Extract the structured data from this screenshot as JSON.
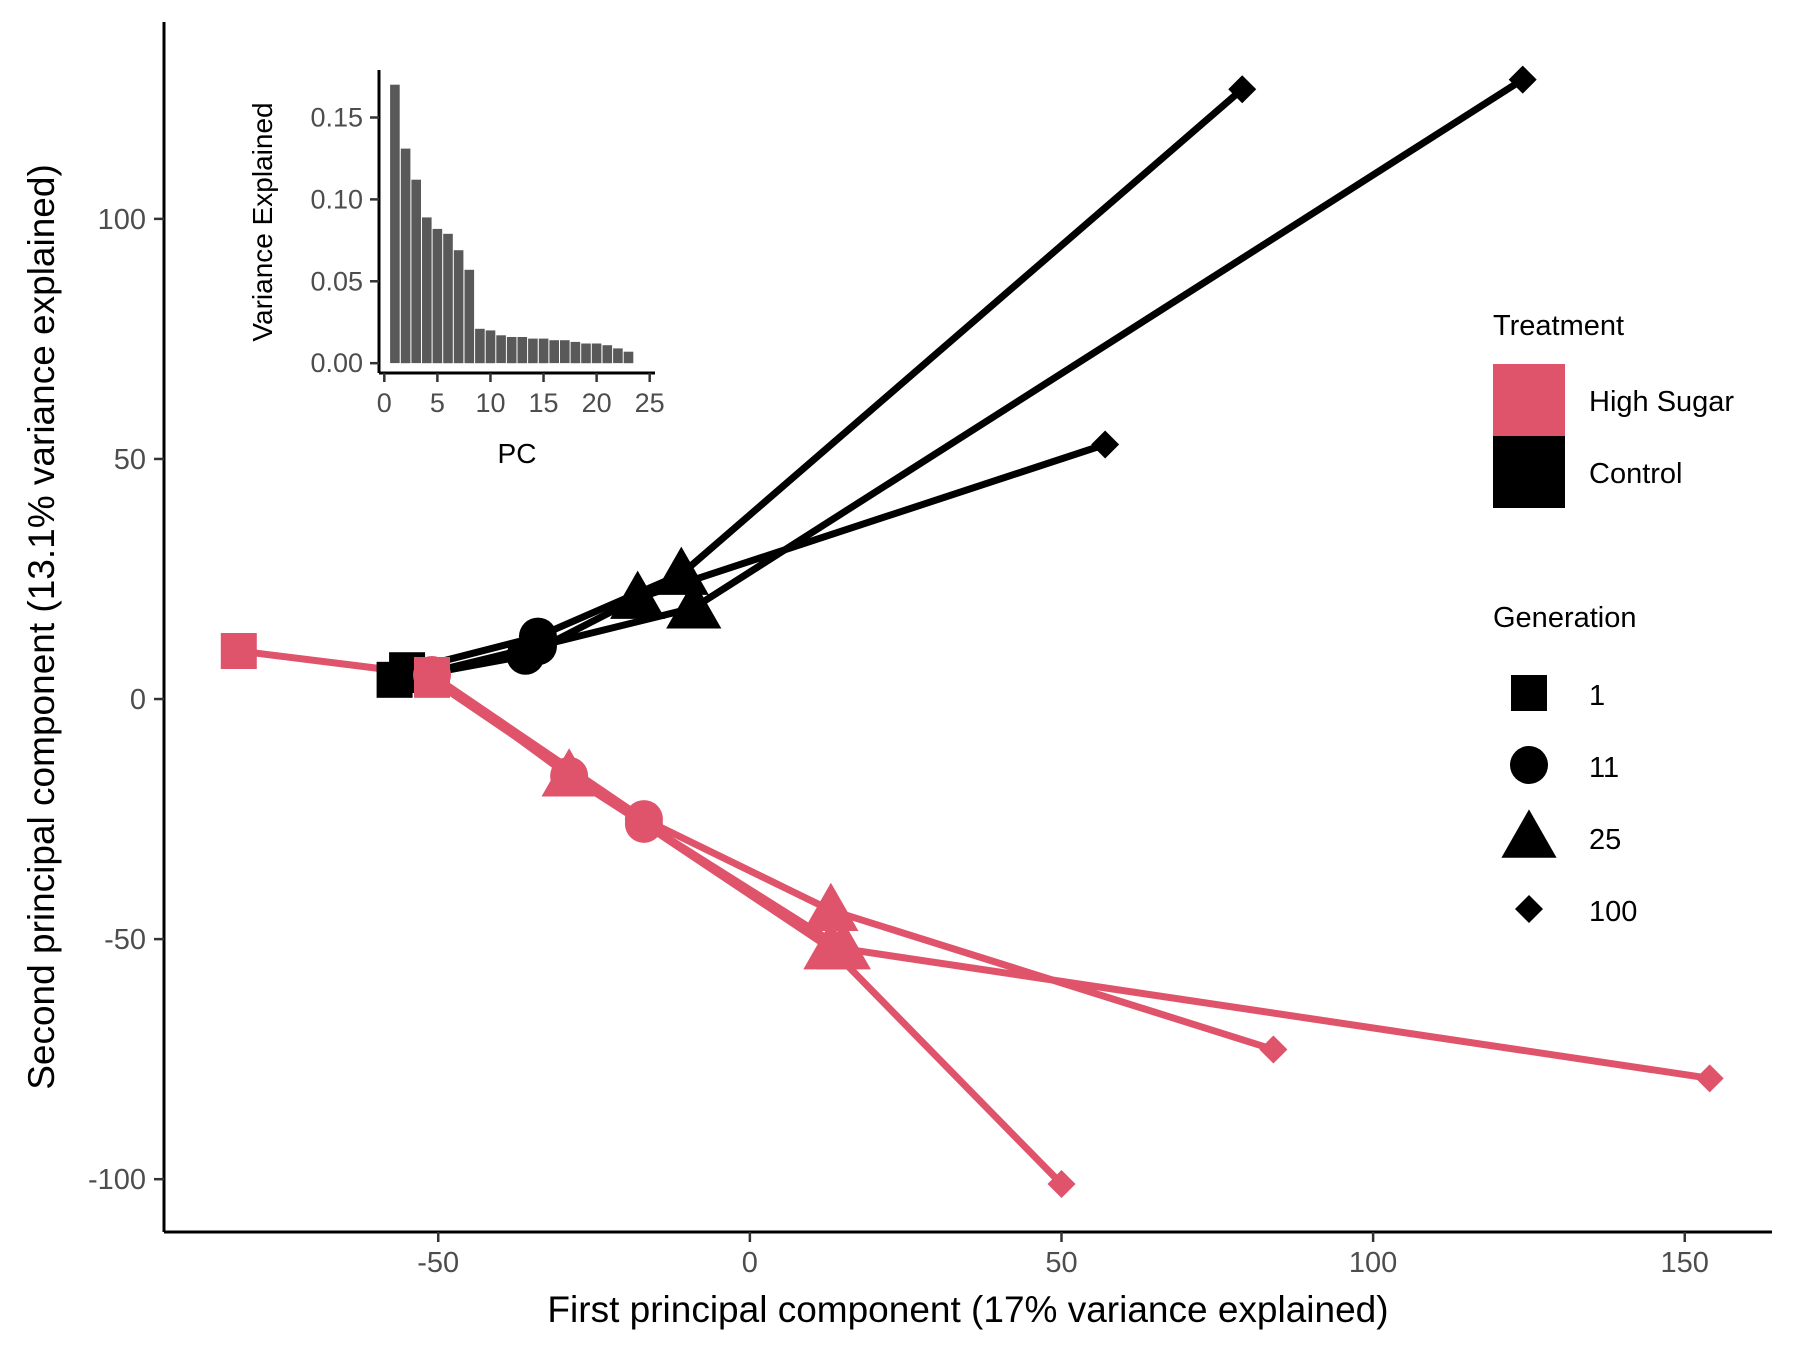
{
  "chart_data": [
    {
      "type": "scatter",
      "xlabel": "First principal component (17% variance explained)",
      "ylabel": "Second principal component (13.1% variance explained)",
      "xlim": [
        -94,
        164
      ],
      "ylim": [
        -111,
        141
      ],
      "x_ticks": [
        -50,
        0,
        50,
        100,
        150
      ],
      "y_ticks": [
        -100,
        -50,
        0,
        50,
        100
      ],
      "grid": false,
      "colors": {
        "High Sugar": "#df536b",
        "Control": "#000000"
      },
      "legend": {
        "position": "right",
        "treatment": {
          "title": "Treatment",
          "items": [
            "High Sugar",
            "Control"
          ]
        },
        "generation": {
          "title": "Generation",
          "items": [
            "1",
            "11",
            "25",
            "100"
          ]
        }
      },
      "series": [
        {
          "treatment": "Control",
          "points": [
            {
              "generation": "1",
              "x": -57,
              "y": 4
            },
            {
              "generation": "11",
              "x": -36,
              "y": 9
            },
            {
              "generation": "25",
              "x": -18,
              "y": 21
            },
            {
              "generation": "100",
              "x": 57,
              "y": 53
            }
          ]
        },
        {
          "treatment": "Control",
          "points": [
            {
              "generation": "1",
              "x": -53,
              "y": 5
            },
            {
              "generation": "11",
              "x": -34,
              "y": 11
            },
            {
              "generation": "25",
              "x": -9,
              "y": 19
            },
            {
              "generation": "100",
              "x": 124,
              "y": 129
            }
          ]
        },
        {
          "treatment": "Control",
          "points": [
            {
              "generation": "1",
              "x": -55,
              "y": 6
            },
            {
              "generation": "11",
              "x": -34,
              "y": 13
            },
            {
              "generation": "25",
              "x": -11,
              "y": 26
            },
            {
              "generation": "100",
              "x": 79,
              "y": 127
            }
          ]
        },
        {
          "treatment": "High Sugar",
          "points": [
            {
              "generation": "1",
              "x": -82,
              "y": 10
            },
            {
              "generation": "11",
              "x": -51,
              "y": 5
            },
            {
              "generation": "25",
              "x": -29,
              "y": -16
            },
            {
              "generation": "100",
              "x": -17,
              "y": -26
            }
          ]
        },
        {
          "treatment": "High Sugar",
          "points": [
            {
              "generation": "1",
              "x": -51,
              "y": 5
            },
            {
              "generation": "11",
              "x": -17,
              "y": -25
            },
            {
              "generation": "25",
              "x": 13,
              "y": -44
            },
            {
              "generation": "100",
              "x": 84,
              "y": -73
            }
          ]
        },
        {
          "treatment": "High Sugar",
          "points": [
            {
              "generation": "1",
              "x": -51,
              "y": 5
            },
            {
              "generation": "11",
              "x": -29,
              "y": -16
            },
            {
              "generation": "25",
              "x": 15,
              "y": -52
            },
            {
              "generation": "100",
              "x": 154,
              "y": -79
            }
          ]
        },
        {
          "treatment": "High Sugar",
          "points": [
            {
              "generation": "1",
              "x": -51,
              "y": 4
            },
            {
              "generation": "11",
              "x": -17,
              "y": -26
            },
            {
              "generation": "25",
              "x": 13,
              "y": -52
            },
            {
              "generation": "100",
              "x": 50,
              "y": -101
            }
          ]
        }
      ]
    },
    {
      "type": "bar",
      "role": "inset",
      "xlabel": "PC",
      "ylabel": "Variance Explained",
      "xlim": [
        -0.5,
        25.5
      ],
      "ylim": [
        -0.006,
        0.179
      ],
      "x_ticks": [
        0,
        5,
        10,
        15,
        20,
        25
      ],
      "y_ticks": [
        0.0,
        0.05,
        0.1,
        0.15
      ],
      "y_tick_labels": [
        "0.00",
        "0.05",
        "0.10",
        "0.15"
      ],
      "color": "#595959",
      "categories": [
        1,
        2,
        3,
        4,
        5,
        6,
        7,
        8,
        9,
        10,
        11,
        12,
        13,
        14,
        15,
        16,
        17,
        18,
        19,
        20,
        21,
        22,
        23
      ],
      "values": [
        0.17,
        0.131,
        0.112,
        0.089,
        0.082,
        0.079,
        0.069,
        0.057,
        0.021,
        0.02,
        0.017,
        0.016,
        0.016,
        0.015,
        0.015,
        0.014,
        0.014,
        0.013,
        0.012,
        0.012,
        0.011,
        0.009,
        0.007
      ]
    }
  ]
}
